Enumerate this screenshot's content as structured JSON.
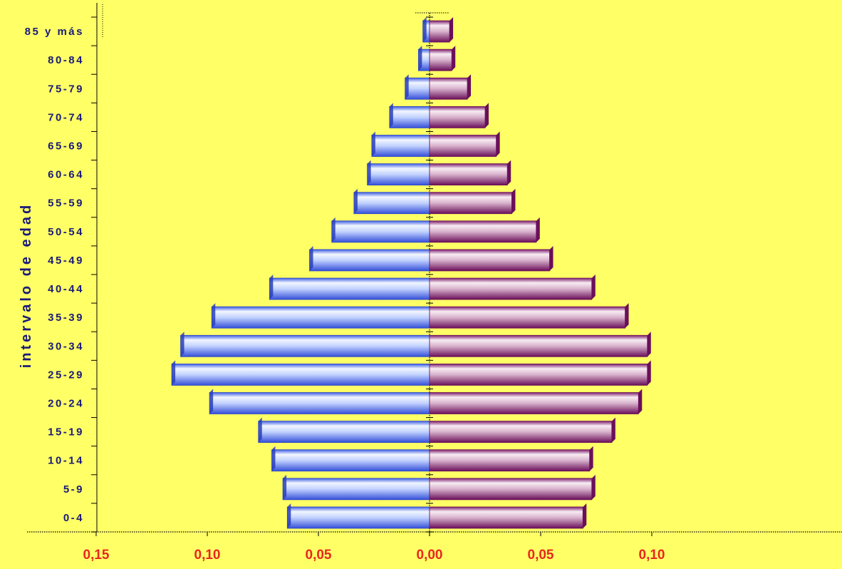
{
  "chart_data": {
    "type": "bar",
    "orientation": "horizontal",
    "subtype": "population-pyramid",
    "ylabel": "intervalo de edad",
    "categories": [
      "0-4",
      "5-9",
      "10-14",
      "15-19",
      "20-24",
      "25-29",
      "30-34",
      "35-39",
      "40-44",
      "45-49",
      "50-54",
      "55-59",
      "60-64",
      "65-69",
      "70-74",
      "75-79",
      "80-84",
      "85 y más"
    ],
    "series": [
      {
        "side": "left",
        "values": [
          0.064,
          0.066,
          0.071,
          0.077,
          0.099,
          0.116,
          0.112,
          0.098,
          0.072,
          0.054,
          0.044,
          0.034,
          0.028,
          0.026,
          0.018,
          0.011,
          0.005,
          0.003
        ]
      },
      {
        "side": "right",
        "values": [
          0.069,
          0.073,
          0.072,
          0.082,
          0.094,
          0.098,
          0.098,
          0.088,
          0.073,
          0.054,
          0.048,
          0.037,
          0.035,
          0.03,
          0.025,
          0.017,
          0.01,
          0.009
        ]
      }
    ],
    "xlim": [
      -0.15,
      0.15
    ],
    "x_ticks": [
      -0.15,
      -0.1,
      -0.05,
      0,
      0.05,
      0.1
    ],
    "x_tick_labels": [
      "0,15",
      "0,10",
      "0,05",
      "0,00",
      "0,05",
      "0,10"
    ],
    "grid": false,
    "legend": "none",
    "colors": {
      "background": "#FFFF66",
      "left_light": "#E8F0FF",
      "left_dark": "#3A5BE0",
      "right_light": "#F4E4EE",
      "right_dark": "#7A1A68",
      "tick_label": "#E8271F",
      "category_label": "#1A1A7A"
    }
  }
}
